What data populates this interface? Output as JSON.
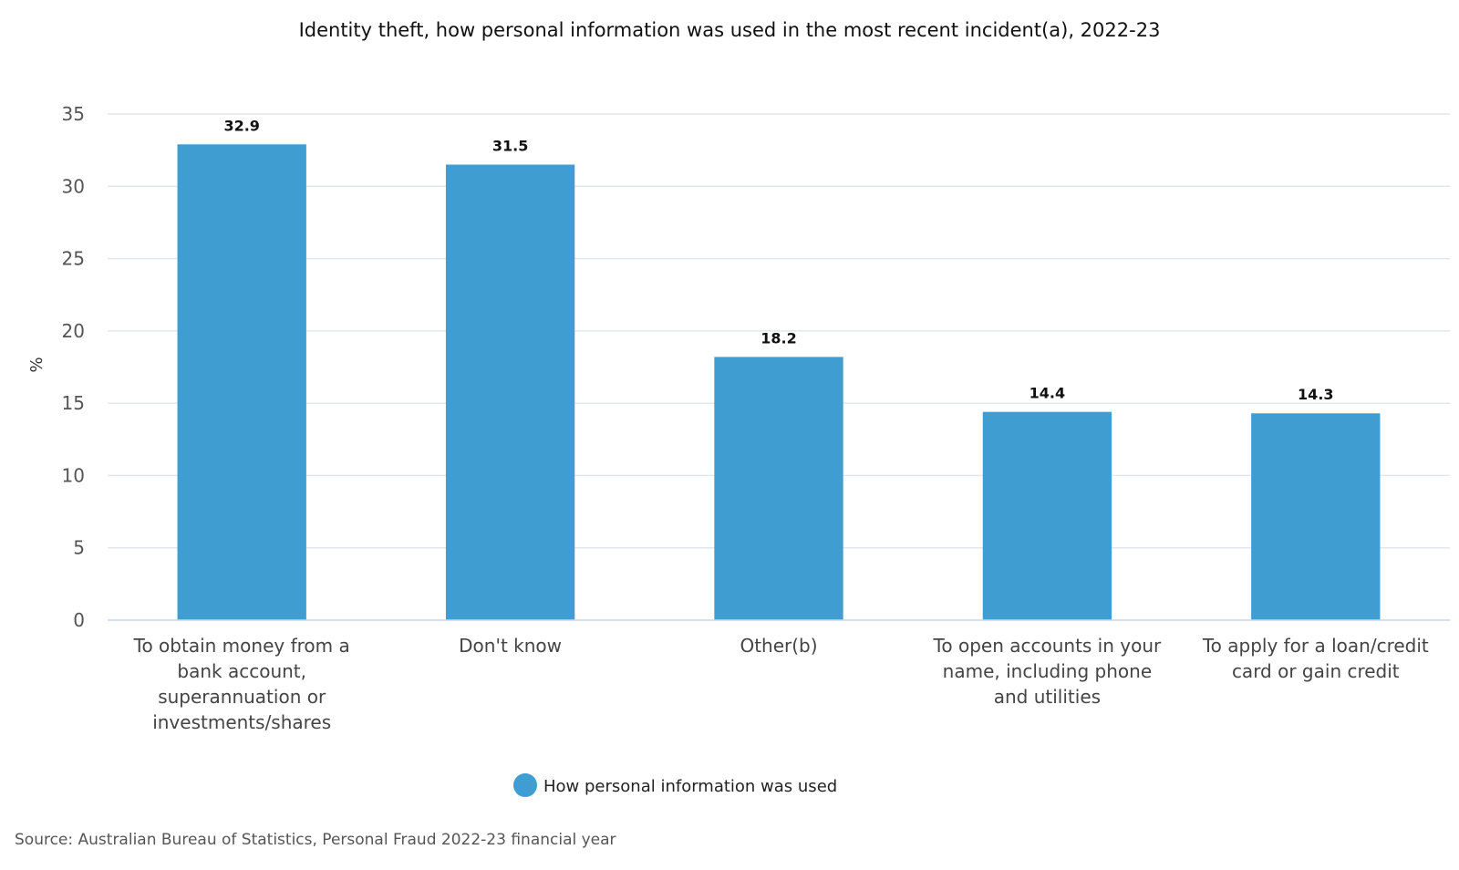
{
  "chart_data": {
    "type": "bar",
    "title": "Identity theft, how personal information was used in the most recent incident(a), 2022-23",
    "ylabel": "%",
    "xlabel": "",
    "ylim": [
      0,
      35
    ],
    "yticks": [
      0,
      5,
      10,
      15,
      20,
      25,
      30,
      35
    ],
    "grid": true,
    "categories": [
      [
        "To obtain money from a",
        "bank account,",
        "superannuation or",
        "investments/shares"
      ],
      [
        "Don't know"
      ],
      [
        "Other(b)"
      ],
      [
        "To open accounts in your",
        "name, including phone",
        "and utilities"
      ],
      [
        "To apply for a loan/credit",
        "card or gain credit"
      ]
    ],
    "series": [
      {
        "name": "How personal information was used",
        "values": [
          32.9,
          31.5,
          18.2,
          14.4,
          14.3
        ],
        "labels": [
          "32.9",
          "31.5",
          "18.2",
          "14.4",
          "14.3"
        ],
        "color": "#3f9dd1"
      }
    ],
    "legend_position": "bottom-center"
  },
  "source": "Source: Australian Bureau of Statistics, Personal Fraud 2022-23 financial year",
  "colors": {
    "grid": "#e3e6ea",
    "axis": "#c8d6e5",
    "bar": "#3f9dd1"
  }
}
